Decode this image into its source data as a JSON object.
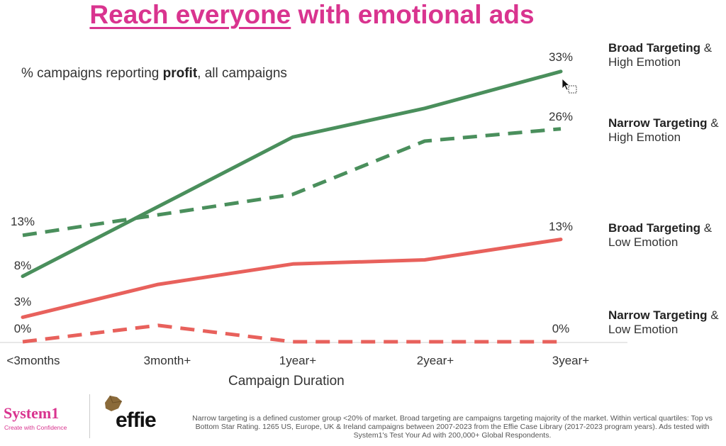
{
  "title_part1": "Reach everyone",
  "title_part2": " with emotional ads",
  "subtitle_pre": "% campaigns reporting ",
  "subtitle_bold": "profit",
  "subtitle_post": ", all campaigns",
  "chart_data": {
    "type": "line",
    "categories": [
      "<3months",
      "3month+",
      "1year+",
      "2year+",
      "3year+"
    ],
    "xlabel": "Campaign Duration",
    "ylabel": "",
    "series": [
      {
        "name_bold": "Broad Targeting",
        "name_rest": " & High Emotion",
        "style": "solid",
        "color": "#4a8f5c",
        "values": [
          8,
          16.5,
          25,
          28.5,
          33
        ],
        "start_label": "8%",
        "end_label": "33%"
      },
      {
        "name_bold": "Narrow Targeting",
        "name_rest": " & High Emotion",
        "style": "dashed",
        "color": "#4a8f5c",
        "values": [
          13,
          15.5,
          18,
          24.5,
          26
        ],
        "start_label": "13%",
        "end_label": "26%"
      },
      {
        "name_bold": "Broad Targeting",
        "name_rest": " & Low Emotion",
        "style": "solid",
        "color": "#e8615c",
        "values": [
          3,
          7,
          9.5,
          10,
          12.5
        ],
        "start_label": "3%",
        "end_label": "13%"
      },
      {
        "name_bold": "Narrow Targeting",
        "name_rest": " & Low Emotion",
        "style": "dashed",
        "color": "#e8615c",
        "values": [
          0,
          2,
          0,
          0,
          0
        ],
        "start_label": "0%",
        "end_label": "0%"
      }
    ]
  },
  "footer": {
    "brand1": "System1",
    "brand1_tagline": "Create with Confidence",
    "brand2": "effie",
    "note": "Narrow targeting is a defined customer group <20% of market. Broad targeting are campaigns targeting majority of the market. Within vertical quartiles: Top vs Bottom Star Rating. 1265 US, Europe, UK & Ireland campaigns between 2007-2023 from the Effie Case Library (2017-2023 program years). Ads tested with System1's Test Your Ad with 200,000+ Global Respondents."
  }
}
